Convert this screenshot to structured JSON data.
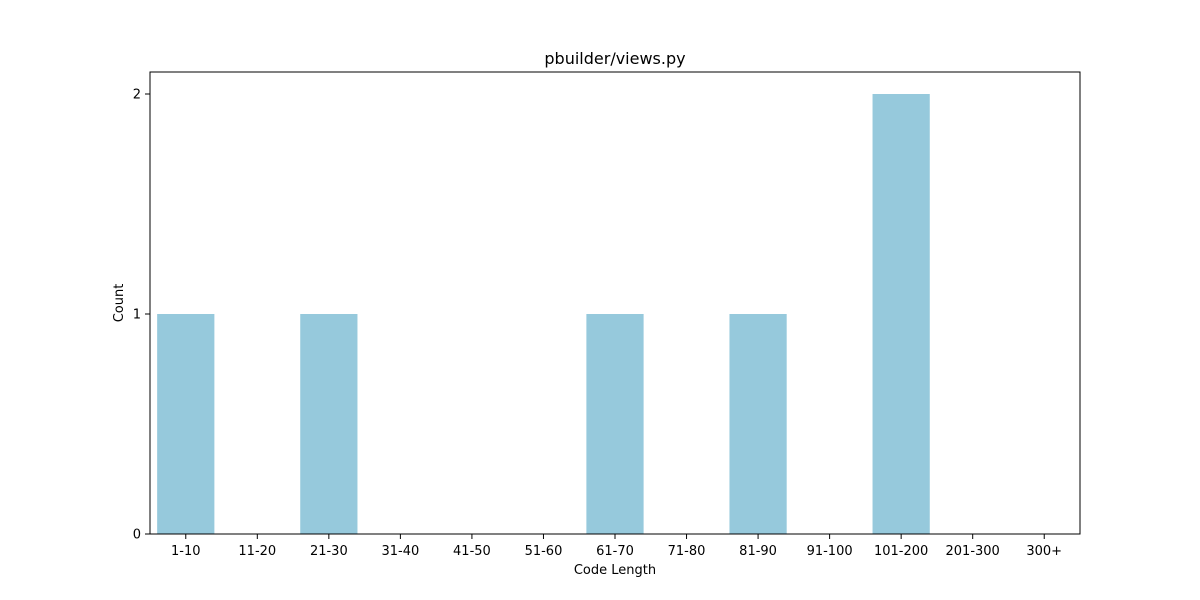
{
  "chart_data": {
    "type": "bar",
    "title": "pbuilder/views.py",
    "xlabel": "Code Length",
    "ylabel": "Count",
    "categories": [
      "1-10",
      "11-20",
      "21-30",
      "31-40",
      "41-50",
      "51-60",
      "61-70",
      "71-80",
      "81-90",
      "91-100",
      "101-200",
      "201-300",
      "300+"
    ],
    "values": [
      1,
      0,
      1,
      0,
      0,
      0,
      1,
      0,
      1,
      0,
      2,
      0,
      0
    ],
    "yticks": [
      "0",
      "1",
      "2"
    ],
    "ylim": [
      0,
      2.1
    ],
    "grid": false,
    "legend": "none",
    "bar_color": "#96c9dc"
  }
}
